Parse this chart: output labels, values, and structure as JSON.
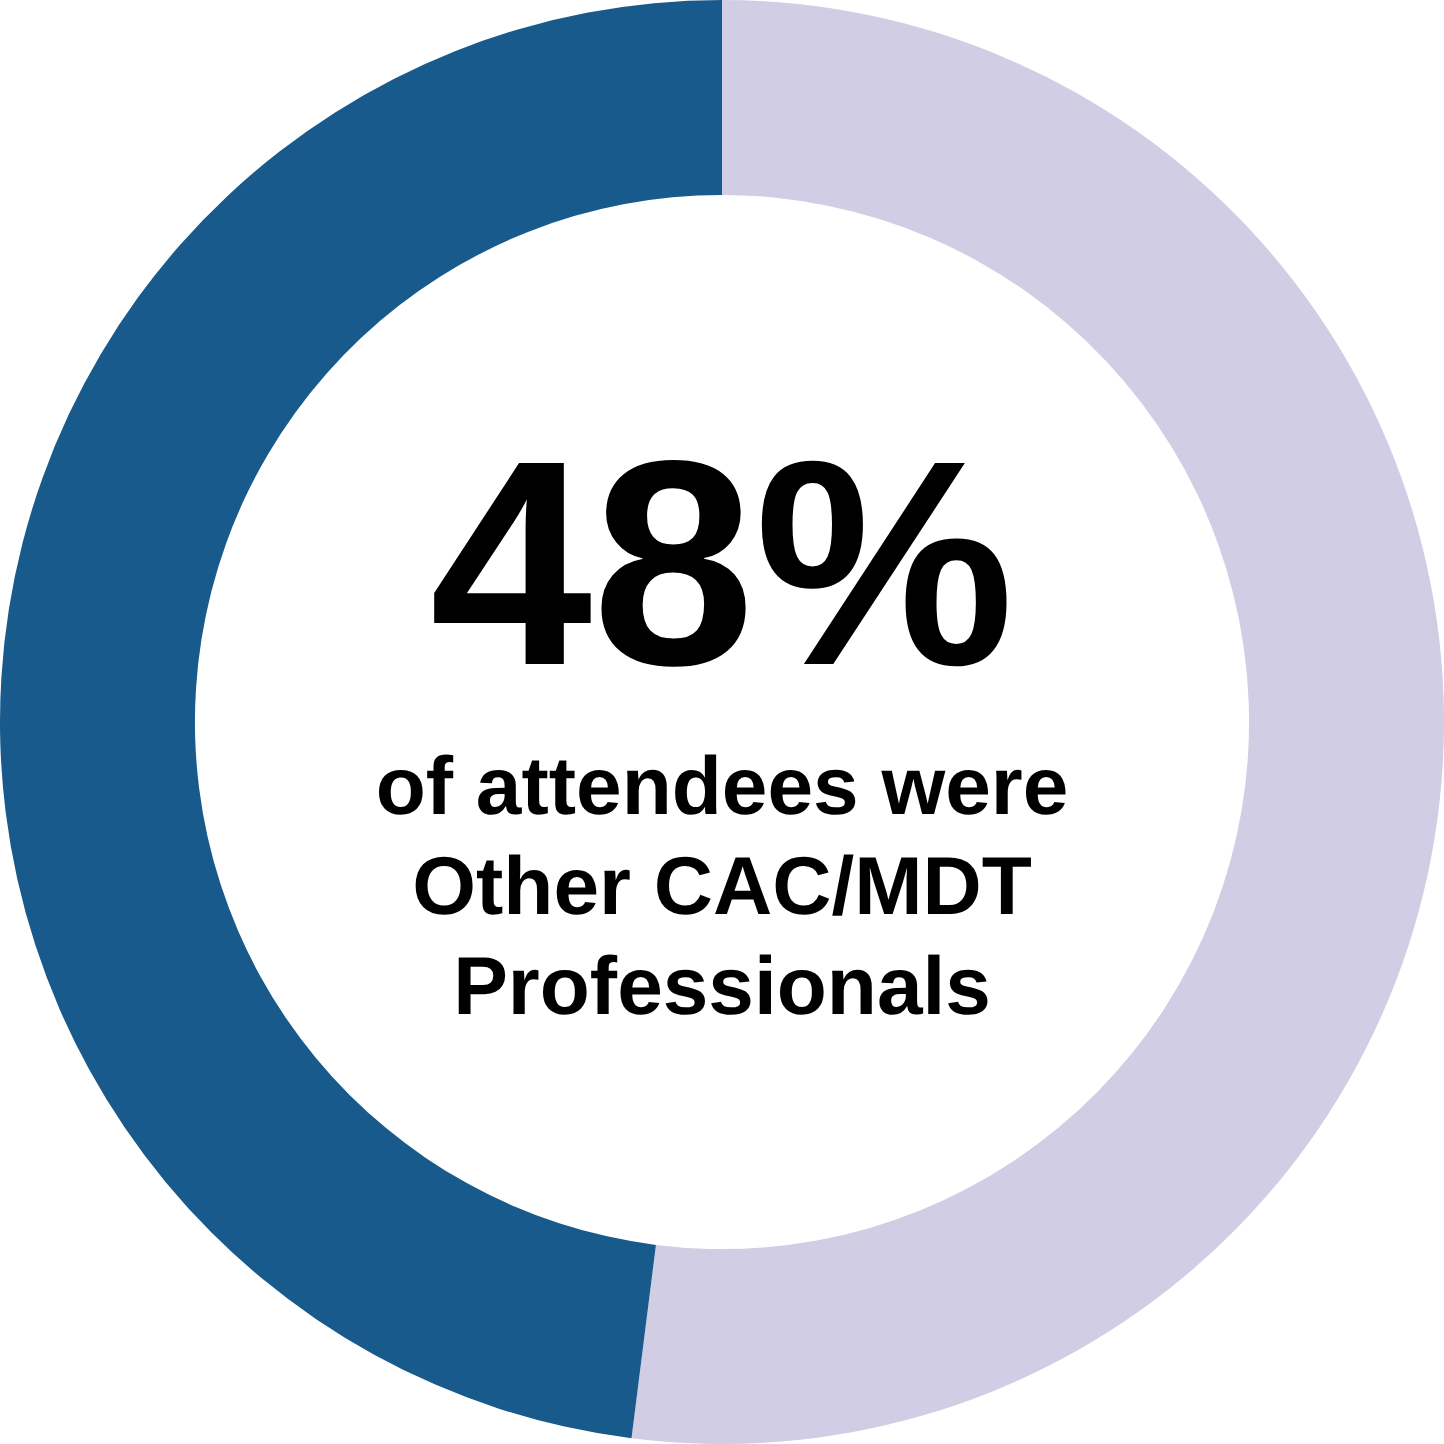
{
  "chart_data": {
    "type": "donut",
    "categories": [
      null,
      null
    ],
    "values": [
      52,
      48
    ],
    "colors": [
      "#d1cde4",
      "#175a8b"
    ],
    "value_labels": [
      null,
      "48%"
    ],
    "annotations": [
      "of attendees were Other CAC/MDT Professionals"
    ]
  }
}
